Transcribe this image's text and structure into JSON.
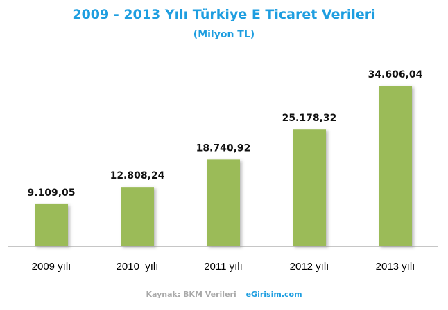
{
  "chart_data": {
    "type": "bar",
    "title": "2009 - 2013 Yılı Türkiye E Ticaret Verileri",
    "subtitle": "(Milyon TL)",
    "xlabel": "",
    "ylabel": "",
    "categories": [
      "2009 yılı",
      "2010  yılı",
      "2011 yılı",
      "2012 yılı",
      "2013 yılı"
    ],
    "values": [
      9109.05,
      12808.24,
      18740.92,
      25178.32,
      34606.04
    ],
    "value_labels": [
      "9.109,05",
      "12.808,24",
      "18.740,92",
      "25.178,32",
      "34.606,04"
    ],
    "ylim": [
      0,
      40000
    ],
    "grid": false,
    "legend": "none",
    "bar_color": "#9bbb59",
    "title_color": "#1e9ee0"
  },
  "footer": {
    "source": "Kaynak: BKM Verileri",
    "site": "eGirisim.com"
  }
}
